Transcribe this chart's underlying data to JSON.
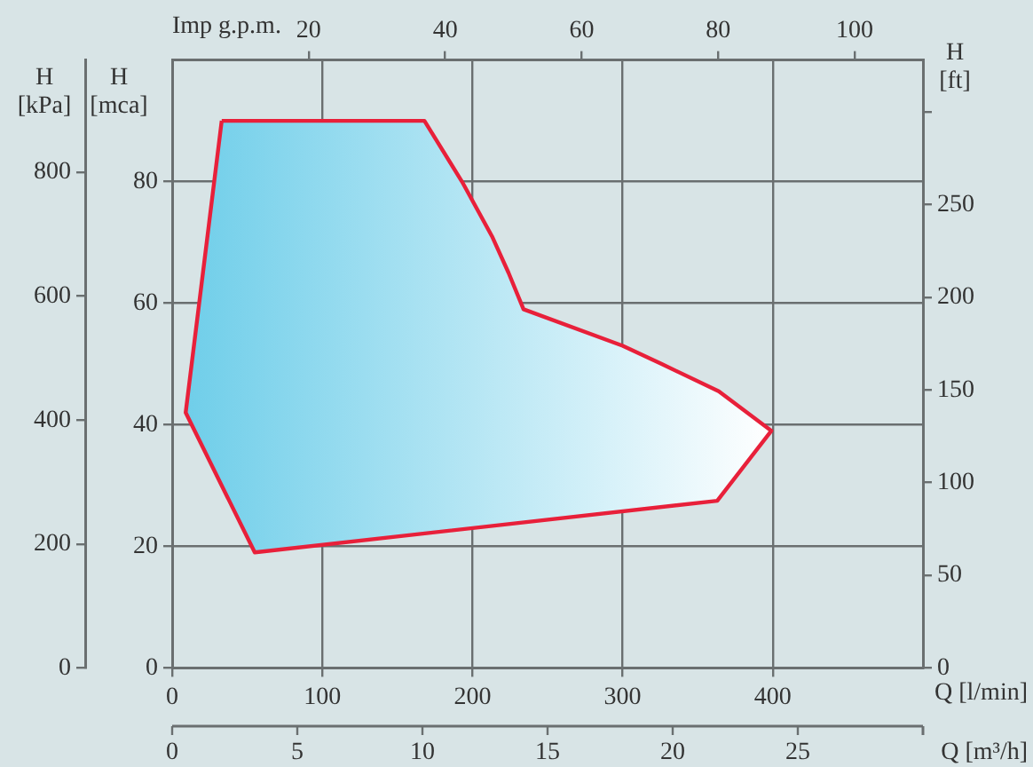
{
  "chart_data": [
    {
      "type": "area",
      "x": [
        33,
        168,
        193,
        213,
        224,
        234,
        300,
        326,
        364,
        399,
        363,
        55,
        9,
        33
      ],
      "series": [
        {
          "color": "#e8203a",
          "values": [
            90,
            90,
            80,
            71,
            65,
            59,
            53,
            50,
            45.5,
            39,
            27.5,
            19,
            42,
            90
          ]
        }
      ],
      "xlabel": "Q [l/min]",
      "ylabel": "H [mca]",
      "y2label": "H [ft]",
      "y3label": "H [kPa]",
      "x2label": "Imp g.p.m.",
      "xlim": [
        0,
        500
      ],
      "xticks": [
        0,
        100,
        200,
        300,
        400
      ],
      "ylim": [
        0,
        100
      ],
      "yticks": [
        0,
        20,
        40,
        60,
        80
      ],
      "x2lim": [
        0,
        110
      ],
      "x2ticks": [
        20,
        40,
        60,
        80,
        100
      ],
      "y2lim": [
        0,
        328
      ],
      "y2ticks": [
        0,
        50,
        100,
        150,
        200,
        250,
        {
          "value": 300,
          "label": null
        }
      ],
      "y3lim": [
        0,
        981
      ],
      "y3ticks": [
        0,
        200,
        400,
        600,
        800
      ],
      "annotations": [
        "0",
        "5",
        "10",
        "15",
        "20",
        "25",
        "Q [m³/h]"
      ],
      "grid": true,
      "legend": false
    }
  ]
}
